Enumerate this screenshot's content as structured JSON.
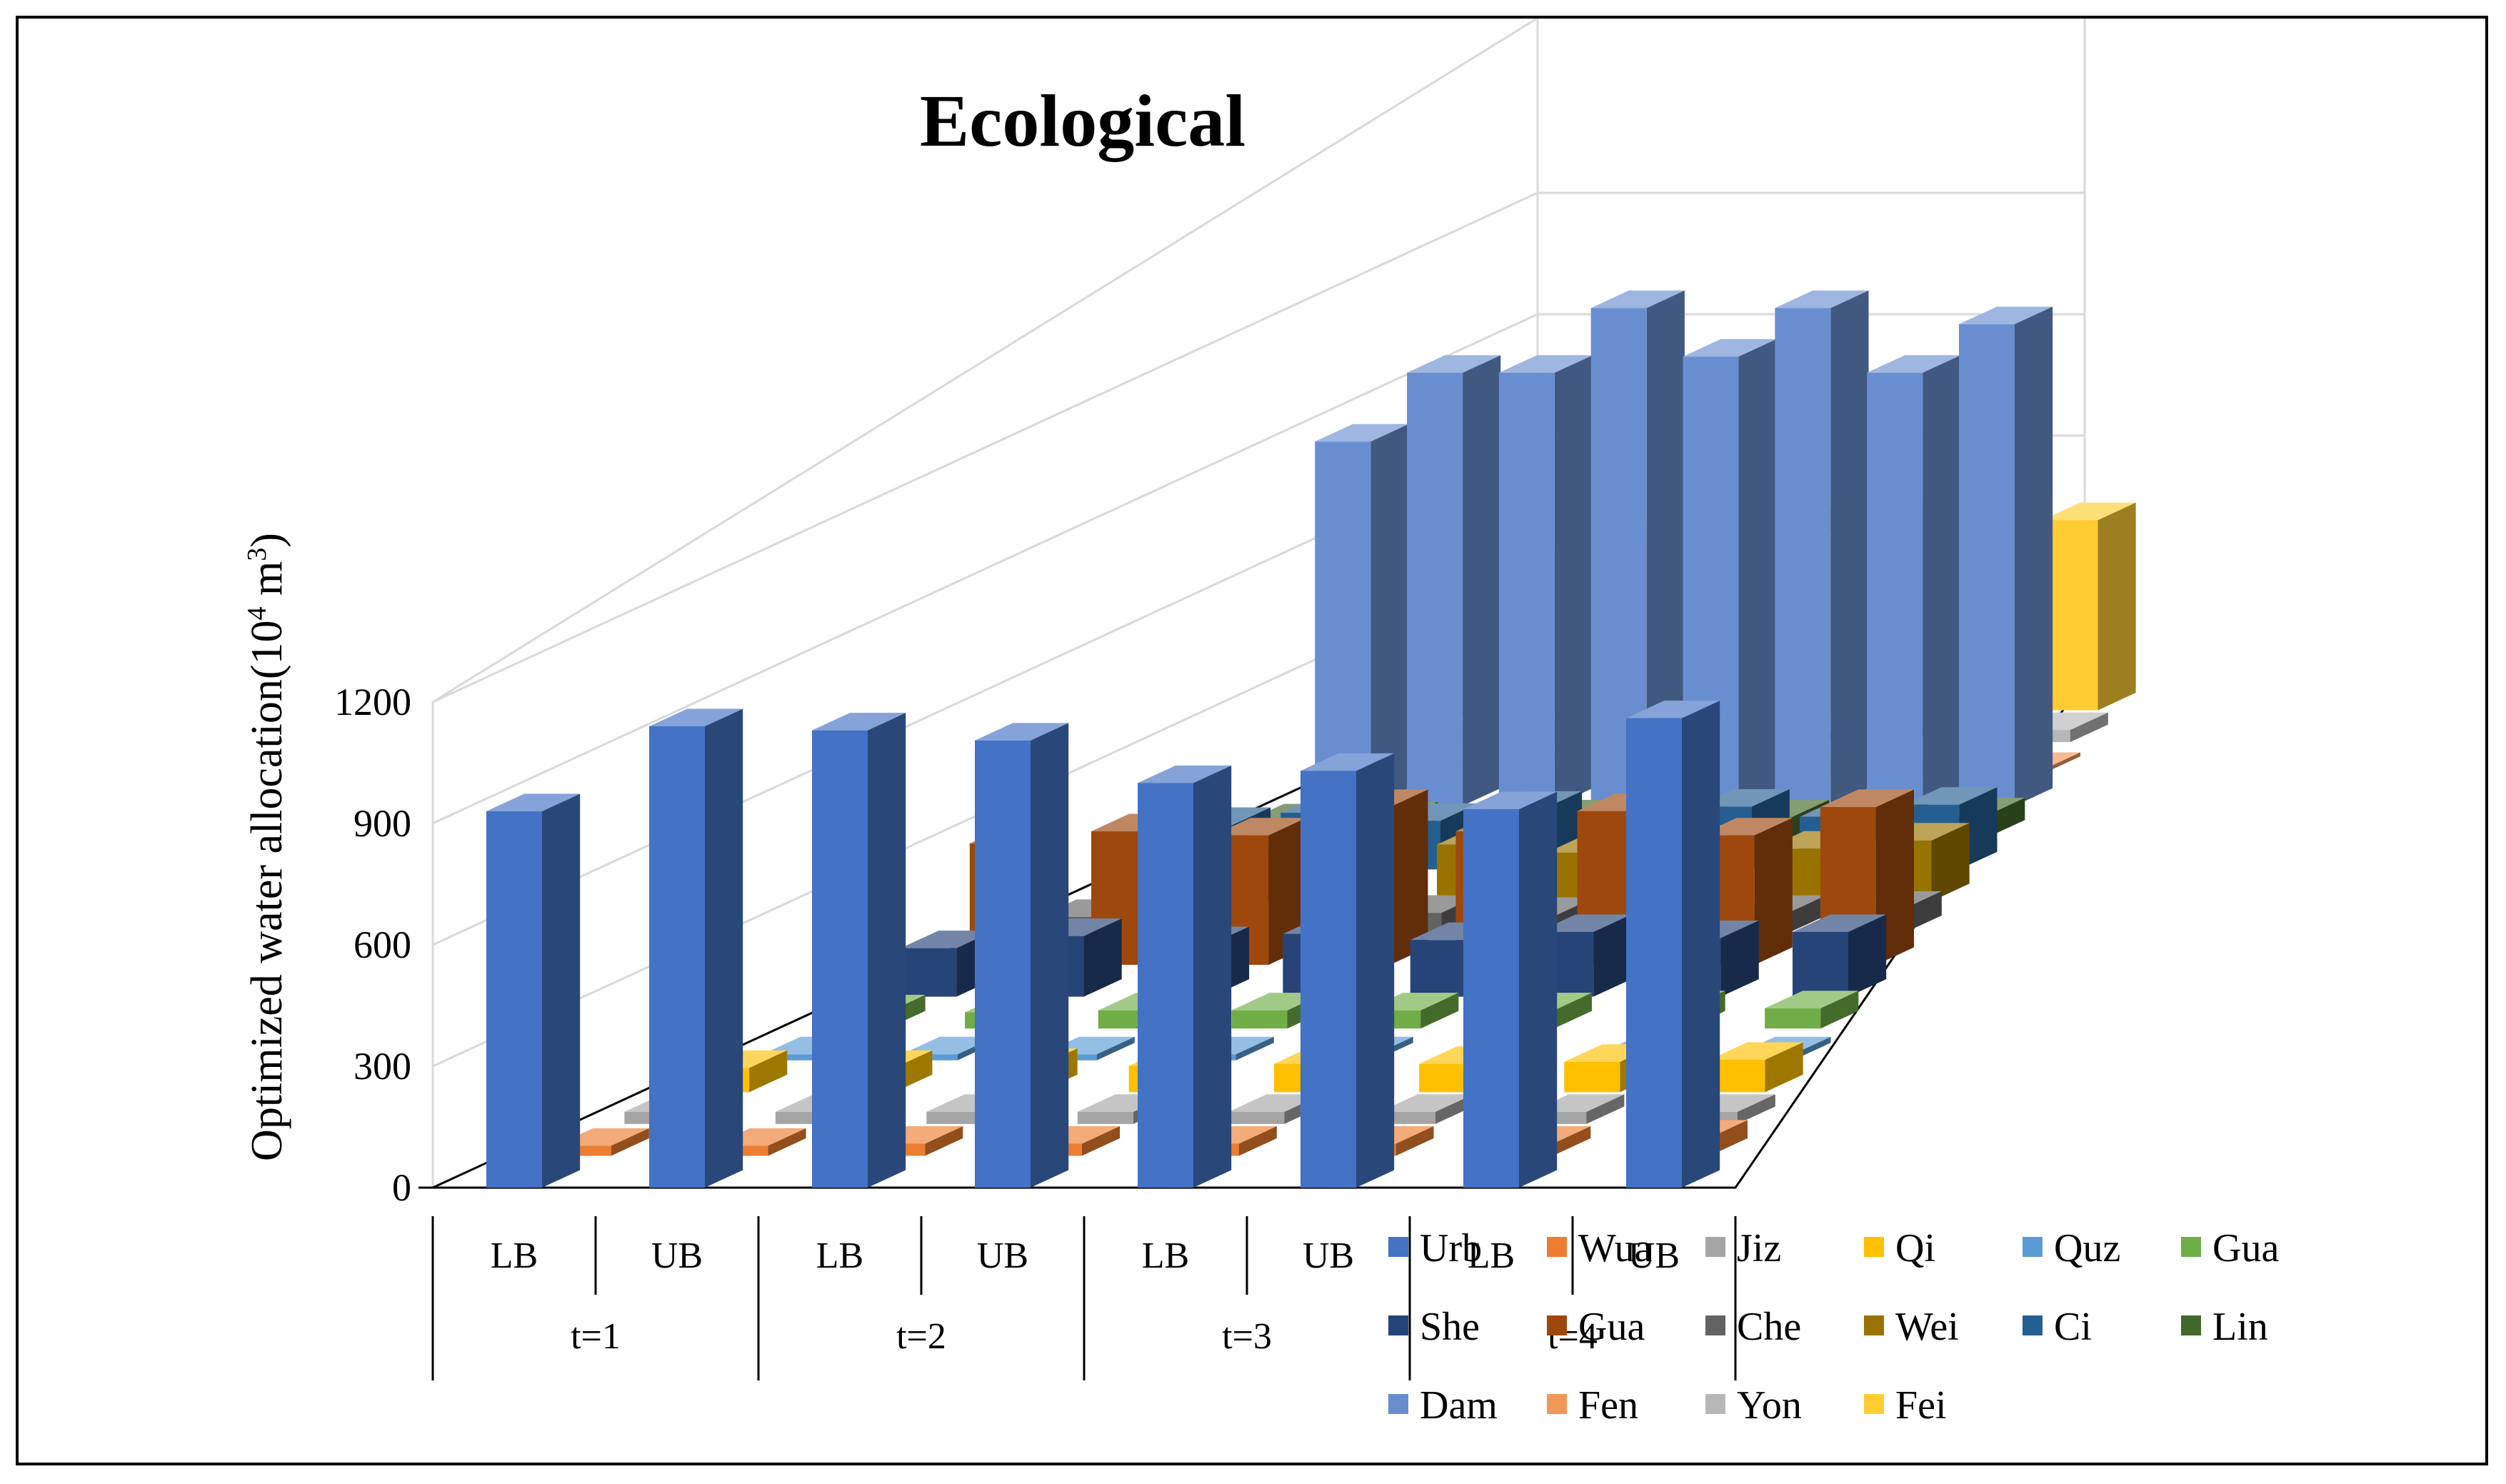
{
  "chart_data": {
    "type": "bar",
    "subtype": "3d-column",
    "title": "Ecological",
    "ylabel": "Optimized water allocation(10⁴ m³)",
    "ylabel_parts": {
      "main": "Optimized water allocation(10",
      "exp1": "4",
      "mid": " m",
      "exp2": "3",
      "end": ")"
    },
    "xlabel": "",
    "ylim": [
      0,
      1200
    ],
    "yticks": [
      "0",
      "300",
      "600",
      "900",
      "1200"
    ],
    "bound_labels": [
      "LB",
      "UB",
      "LB",
      "UB",
      "LB",
      "UB",
      "LB",
      "UB"
    ],
    "period_labels": [
      "t=1",
      "t=2",
      "t=3",
      "t=4"
    ],
    "categories": [
      "t=1 LB",
      "t=1 UB",
      "t=2 LB",
      "t=2 UB",
      "t=3 LB",
      "t=3 UB",
      "t=4 LB",
      "t=4 UB"
    ],
    "legend_position": "bottom-right",
    "series": [
      {
        "name": "Urb",
        "color": "#4472C4",
        "values": [
          930,
          1140,
          1130,
          1105,
          1000,
          1030,
          935,
          1160
        ]
      },
      {
        "name": "Wua",
        "color": "#ED7D31",
        "values": [
          25,
          25,
          30,
          30,
          30,
          30,
          30,
          45
        ]
      },
      {
        "name": "Jiz",
        "color": "#A5A5A5",
        "values": [
          30,
          30,
          30,
          30,
          30,
          30,
          30,
          30
        ]
      },
      {
        "name": "Qi",
        "color": "#FFC000",
        "values": [
          60,
          60,
          65,
          65,
          70,
          70,
          75,
          80
        ]
      },
      {
        "name": "Quz",
        "color": "#5B9BD5",
        "values": [
          15,
          15,
          15,
          15,
          15,
          15,
          15,
          15
        ]
      },
      {
        "name": "Gua",
        "color": "#70AD47",
        "values": [
          40,
          40,
          45,
          45,
          45,
          45,
          50,
          50
        ]
      },
      {
        "name": "She",
        "color": "#264478",
        "values": [
          120,
          150,
          130,
          155,
          140,
          160,
          145,
          160
        ]
      },
      {
        "name": "Gua",
        "color": "#9E480E",
        "values": [
          300,
          330,
          320,
          390,
          330,
          380,
          320,
          390
        ]
      },
      {
        "name": "Che",
        "color": "#636363",
        "values": [
          40,
          45,
          45,
          50,
          45,
          50,
          50,
          60
        ]
      },
      {
        "name": "Wei",
        "color": "#997300",
        "values": [
          100,
          130,
          110,
          140,
          120,
          145,
          130,
          150
        ]
      },
      {
        "name": "Ci",
        "color": "#255E91",
        "values": [
          110,
          140,
          120,
          150,
          125,
          155,
          130,
          160
        ]
      },
      {
        "name": "Lin",
        "color": "#43682B",
        "values": [
          40,
          45,
          45,
          50,
          45,
          50,
          50,
          55
        ]
      },
      {
        "name": "Dam",
        "color": "#698ED0",
        "values": [
          900,
          1070,
          1070,
          1230,
          1110,
          1230,
          1070,
          1190
        ]
      },
      {
        "name": "Fen",
        "color": "#F1975A",
        "values": [
          5,
          5,
          5,
          5,
          5,
          5,
          5,
          10
        ]
      },
      {
        "name": "Yon",
        "color": "#B7B7B7",
        "values": [
          25,
          25,
          25,
          25,
          25,
          25,
          30,
          30
        ]
      },
      {
        "name": "Fei",
        "color": "#FFCD33",
        "values": [
          360,
          420,
          400,
          460,
          430,
          490,
          420,
          470
        ]
      }
    ]
  }
}
